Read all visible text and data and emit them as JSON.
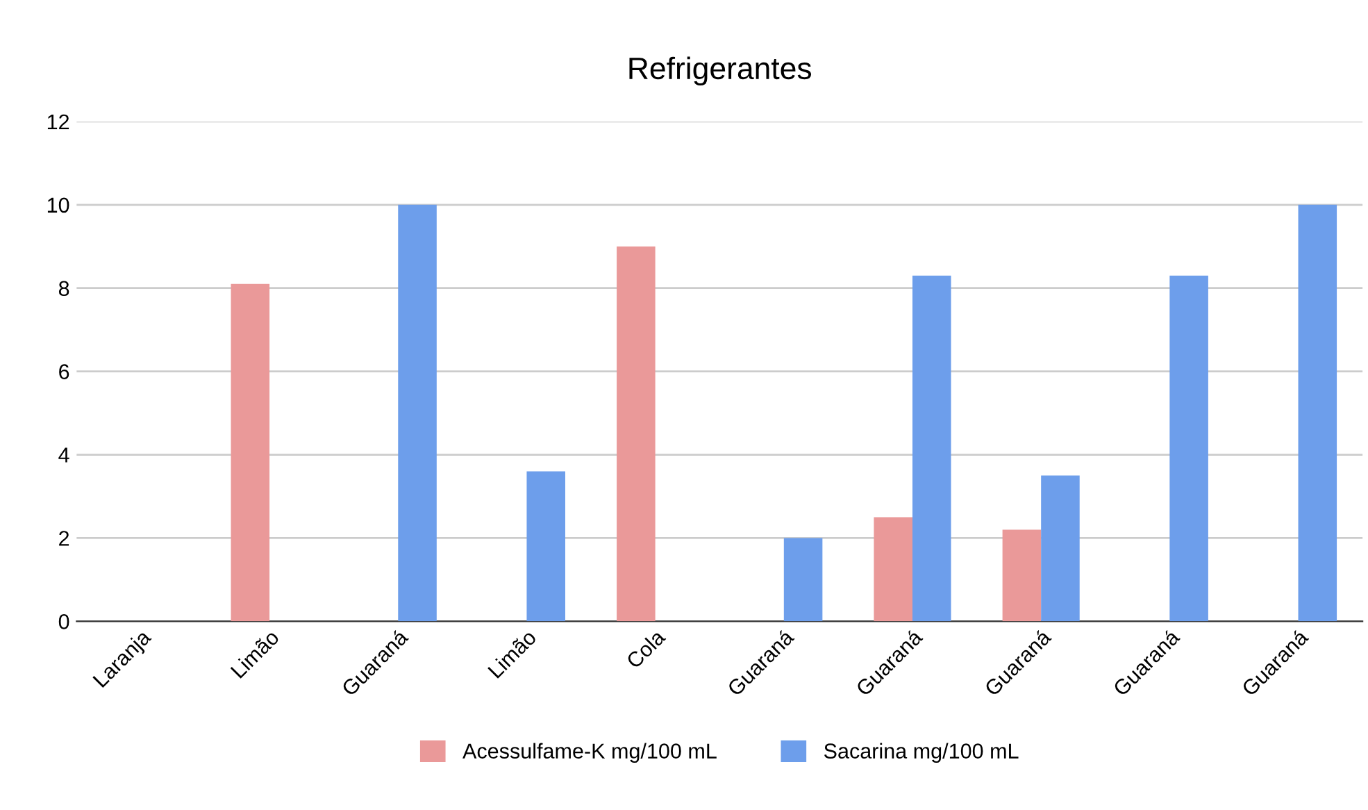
{
  "chart_data": {
    "type": "bar",
    "title": "Refrigerantes",
    "categories": [
      "Laranja",
      "Limão",
      "Guaraná",
      "Limão",
      "Cola",
      "Guaraná",
      "Guaraná",
      "Guaraná",
      "Guaraná",
      "Guaraná"
    ],
    "series": [
      {
        "name": "Acessulfame-K mg/100 mL",
        "color": "#ea9999",
        "values": [
          null,
          8.1,
          null,
          null,
          9,
          null,
          2.5,
          2.2,
          null,
          null
        ]
      },
      {
        "name": "Sacarina mg/100 mL",
        "color": "#6d9eeb",
        "values": [
          null,
          null,
          10,
          3.6,
          null,
          2,
          8.3,
          3.5,
          8.3,
          10
        ]
      }
    ],
    "ylim": [
      0,
      12
    ],
    "yticks": [
      0,
      2,
      4,
      6,
      8,
      10,
      12
    ],
    "grid": "y",
    "legend": "bottom"
  }
}
